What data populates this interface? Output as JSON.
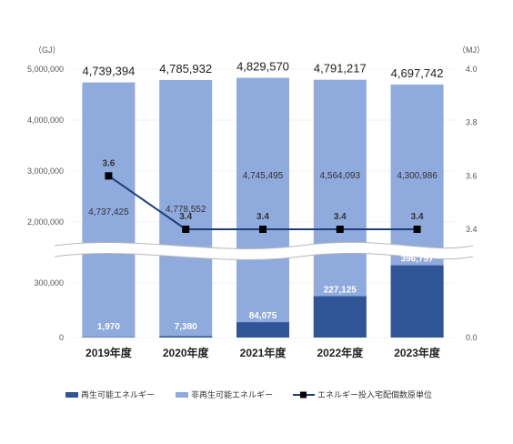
{
  "chart_data": {
    "type": "bar",
    "stacked": true,
    "broken_axis": true,
    "categories": [
      "2019年度",
      "2020年度",
      "2021年度",
      "2022年度",
      "2023年度"
    ],
    "totals": [
      "4,739,394",
      "4,785,932",
      "4,829,570",
      "4,791,217",
      "4,697,742"
    ],
    "series": [
      {
        "name": "再生可能エネルギー",
        "color": "#2f5597",
        "values": [
          1970,
          7380,
          84075,
          227125,
          396757
        ],
        "labels": [
          "1,970",
          "7,380",
          "84,075",
          "227,125",
          "396,757"
        ]
      },
      {
        "name": "非再生可能エネルギー",
        "color": "#8faadc",
        "values": [
          4737425,
          4778552,
          4745495,
          4564093,
          4300986
        ],
        "labels": [
          "4,737,425",
          "4,778,552",
          "4,745,495",
          "4,564,093",
          "4,300,986"
        ]
      }
    ],
    "line_series": {
      "name": "エネルギー投入宅配個数原単位",
      "color": "#1f3d7a",
      "values": [
        3.6,
        3.4,
        3.4,
        3.4,
        3.4
      ],
      "labels": [
        "3.6",
        "3.4",
        "3.4",
        "3.4",
        "3.4"
      ]
    },
    "y_left": {
      "unit": "（GJ）",
      "ticks": [
        "0",
        "300,000",
        "2,000,000",
        "3,000,000",
        "4,000,000",
        "5,000,000"
      ],
      "lower_range": [
        0,
        600000
      ],
      "upper_range": [
        1550000,
        5000000
      ]
    },
    "y_right": {
      "unit": "（MJ）",
      "ticks": [
        "0.0",
        "3.4",
        "3.6",
        "3.8",
        "4.0"
      ],
      "lower_range": [
        0,
        0.6
      ],
      "upper_range": [
        3.3,
        4.0
      ]
    },
    "legend_position": "bottom"
  }
}
